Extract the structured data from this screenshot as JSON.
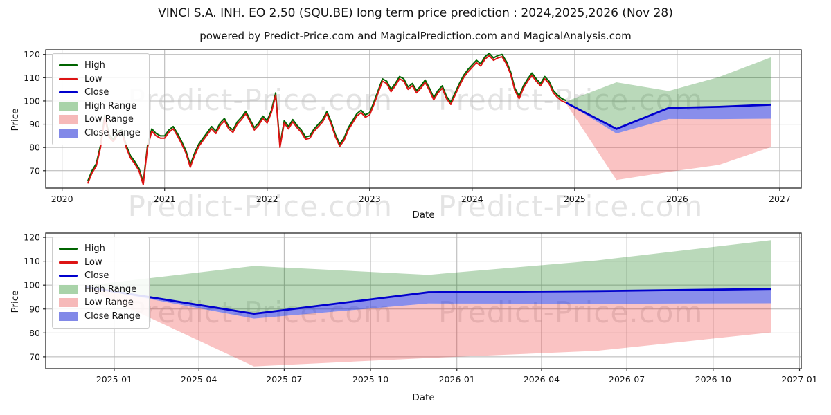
{
  "title": "VINCI S.A. INH. EO 2,50 (SQU.BE) long term price prediction : 2024,2025,2026 (Nov 28)",
  "subtitle": "powered by Predict-Price.com and MagicalPrediction.com and MagicalAnalysis.com",
  "watermark": "Predict-Price.com",
  "colors": {
    "high_line": "#006400",
    "low_line": "#dd1414",
    "close_line": "#0000cd",
    "high_fill": "rgba(26,128,26,0.30)",
    "low_fill": "rgba(235,25,25,0.26)",
    "close_fill": "rgba(20,30,215,0.50)",
    "grid": "#b4b4b4",
    "spine": "#262626",
    "tick_text": "#141414",
    "legend_high_patch": "#a9d3a9",
    "legend_low_patch": "#f6b9b9",
    "legend_close_patch": "#8289e8"
  },
  "legend": {
    "items": [
      {
        "label": "High",
        "swatch": "line",
        "color": "#006400"
      },
      {
        "label": "Low",
        "swatch": "line",
        "color": "#dd1414"
      },
      {
        "label": "Close",
        "swatch": "line",
        "color": "#0000cd"
      },
      {
        "label": "High Range",
        "swatch": "patch",
        "color": "#a9d3a9"
      },
      {
        "label": "Low Range",
        "swatch": "patch",
        "color": "#f6b9b9"
      },
      {
        "label": "Close Range",
        "swatch": "patch",
        "color": "#8289e8"
      }
    ]
  },
  "chart_data": [
    {
      "type": "line",
      "role": "top-chart",
      "xlabel": "Date",
      "ylabel": "Price",
      "xlim": [
        2019.84,
        2027.21
      ],
      "ylim": [
        62.5,
        122
      ],
      "grid": true,
      "legend_position": "upper left",
      "xticks": [
        {
          "v": 2020,
          "label": "2020"
        },
        {
          "v": 2021,
          "label": "2021"
        },
        {
          "v": 2022,
          "label": "2022"
        },
        {
          "v": 2023,
          "label": "2023"
        },
        {
          "v": 2024,
          "label": "2024"
        },
        {
          "v": 2025,
          "label": "2025"
        },
        {
          "v": 2026,
          "label": "2026"
        },
        {
          "v": 2027,
          "label": "2027"
        }
      ],
      "yticks": [
        70,
        80,
        90,
        100,
        110,
        120
      ],
      "history": {
        "note": "High/Low/Close overlap at this scale; values are the Low/Close price trace, semi-monthly",
        "x_start": 2020.25,
        "x_step": 0.0416667,
        "price": [
          64.5,
          69,
          72,
          80,
          93,
          84.5,
          82.5,
          85.5,
          86.5,
          80,
          75.5,
          73,
          70,
          64,
          80,
          87,
          85,
          84,
          84,
          86.5,
          88,
          85,
          81.5,
          77.5,
          71.5,
          76.5,
          80.5,
          83,
          85.5,
          88,
          86,
          89.5,
          91.5,
          88,
          86.5,
          90,
          92,
          94.5,
          91,
          87.5,
          89.5,
          92.5,
          90.5,
          95,
          102.5,
          80,
          90.5,
          88,
          91,
          88.5,
          86.5,
          83.5,
          84,
          87,
          89,
          91,
          94.5,
          90,
          84.5,
          80.5,
          83,
          87.5,
          90.5,
          93.5,
          95,
          93,
          94,
          98.5,
          103.5,
          108.5,
          107.5,
          104,
          106.5,
          109.5,
          108.5,
          105,
          106.5,
          103.5,
          105.5,
          108,
          104.5,
          100.5,
          103.5,
          105.5,
          101,
          98.5,
          102.5,
          106.5,
          110,
          112.5,
          114.5,
          116.5,
          115,
          118,
          119.5,
          117.5,
          118.5,
          119,
          116,
          111.5,
          104.5,
          101,
          105.5,
          108.5,
          111,
          108.5,
          106.5,
          109.5,
          107.5,
          103.5,
          101.5,
          100,
          99.2
        ]
      },
      "forecast": {
        "x": [
          2024.917,
          2025.408,
          2025.917,
          2026.408,
          2026.917
        ],
        "close": [
          99.2,
          88.0,
          97.0,
          97.5,
          98.4
        ],
        "close_low": [
          99.2,
          86.0,
          92.3,
          92.2,
          92.4
        ],
        "high_top": [
          99.8,
          108.0,
          104.3,
          110.3,
          118.8
        ],
        "low_bottom": [
          98.8,
          66.0,
          69.5,
          72.5,
          80.2
        ]
      }
    },
    {
      "type": "line",
      "role": "bottom-chart",
      "xlabel": "Date",
      "ylabel": "Price",
      "xlim": [
        2024.8,
        2027.005
      ],
      "ylim": [
        65.05,
        121.75
      ],
      "grid": true,
      "legend_position": "upper left",
      "xticks": [
        {
          "v": 2025.0,
          "label": "2025-01"
        },
        {
          "v": 2025.247,
          "label": "2025-04"
        },
        {
          "v": 2025.496,
          "label": "2025-07"
        },
        {
          "v": 2025.748,
          "label": "2025-10"
        },
        {
          "v": 2026.0,
          "label": "2026-01"
        },
        {
          "v": 2026.247,
          "label": "2026-04"
        },
        {
          "v": 2026.496,
          "label": "2026-07"
        },
        {
          "v": 2026.748,
          "label": "2026-10"
        },
        {
          "v": 2027.0,
          "label": "2027-01"
        }
      ],
      "yticks": [
        70,
        80,
        90,
        100,
        110,
        120
      ],
      "forecast": {
        "x": [
          2024.917,
          2025.408,
          2025.917,
          2026.408,
          2026.917
        ],
        "close": [
          99.2,
          88.0,
          97.0,
          97.5,
          98.4
        ],
        "close_low": [
          99.2,
          86.0,
          92.3,
          92.2,
          92.4
        ],
        "high_top": [
          99.8,
          108.0,
          104.3,
          110.3,
          118.8
        ],
        "low_bottom": [
          98.8,
          66.0,
          69.5,
          72.5,
          80.2
        ]
      }
    }
  ]
}
